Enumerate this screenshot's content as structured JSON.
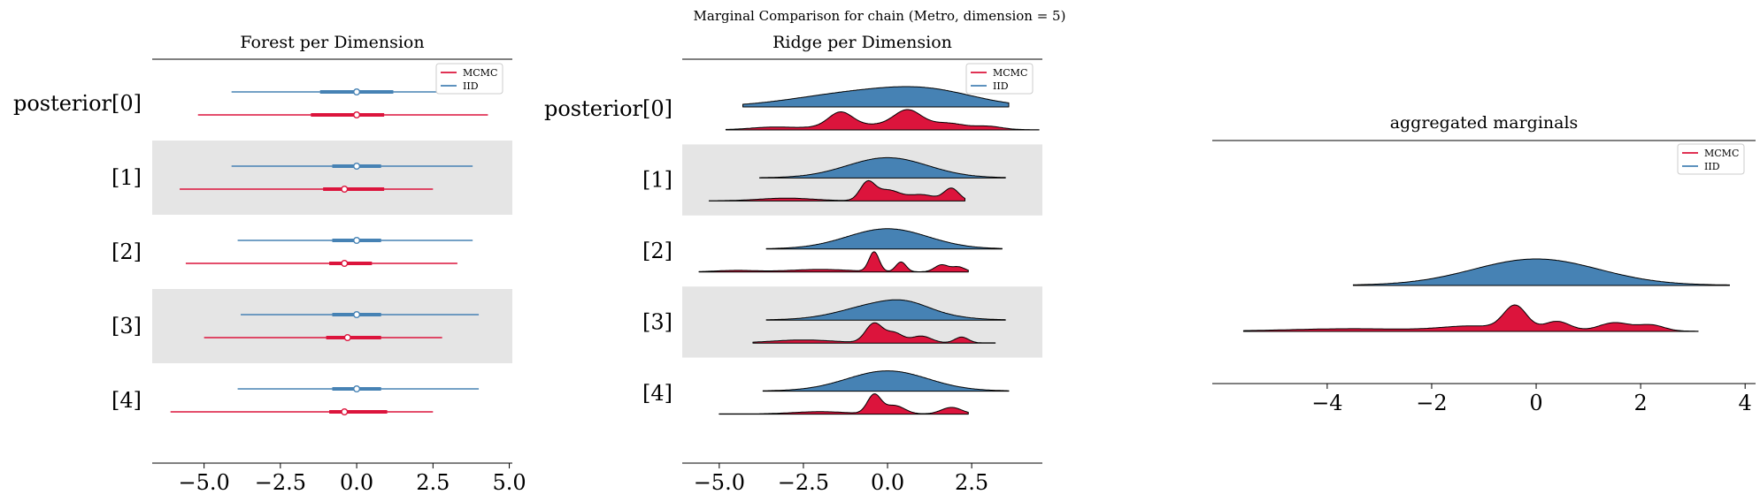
{
  "title": "Marginal Comparison for chain (Metro, dimension = 5)",
  "colors": {
    "mcmc": "#DC143C",
    "iid": "#4682B4",
    "band": "#e5e5e5"
  },
  "legend": {
    "labels": [
      "MCMC",
      "IID"
    ],
    "placement": "upper right"
  },
  "chart_data": [
    {
      "type": "forest",
      "title": "Forest per Dimension",
      "labels": [
        "posterior[0]",
        "[1]",
        "[2]",
        "[3]",
        "[4]"
      ],
      "xticks": [
        "−5.0",
        "−2.5",
        "0.0",
        "2.5",
        "5.0"
      ],
      "xtick_values": [
        -5,
        -2.5,
        0,
        2.5,
        5
      ],
      "xlim": [
        -6.7,
        5.1
      ],
      "series": [
        {
          "name": "IID",
          "rows": [
            {
              "median": 0.0,
              "hdi50": [
                -1.2,
                1.2
              ],
              "hdi94": [
                -4.1,
                4.5
              ]
            },
            {
              "median": 0.0,
              "hdi50": [
                -0.8,
                0.8
              ],
              "hdi94": [
                -4.1,
                3.8
              ]
            },
            {
              "median": 0.0,
              "hdi50": [
                -0.8,
                0.8
              ],
              "hdi94": [
                -3.9,
                3.8
              ]
            },
            {
              "median": 0.0,
              "hdi50": [
                -0.8,
                0.8
              ],
              "hdi94": [
                -3.8,
                4.0
              ]
            },
            {
              "median": 0.0,
              "hdi50": [
                -0.8,
                0.8
              ],
              "hdi94": [
                -3.9,
                4.0
              ]
            }
          ]
        },
        {
          "name": "MCMC",
          "rows": [
            {
              "median": 0.0,
              "hdi50": [
                -1.5,
                0.9
              ],
              "hdi94": [
                -5.2,
                4.3
              ]
            },
            {
              "median": -0.4,
              "hdi50": [
                -1.1,
                0.9
              ],
              "hdi94": [
                -5.8,
                2.5
              ]
            },
            {
              "median": -0.4,
              "hdi50": [
                -0.9,
                0.5
              ],
              "hdi94": [
                -5.6,
                3.3
              ]
            },
            {
              "median": -0.3,
              "hdi50": [
                -1.0,
                0.8
              ],
              "hdi94": [
                -5.0,
                2.8
              ]
            },
            {
              "median": -0.4,
              "hdi50": [
                -0.9,
                1.0
              ],
              "hdi94": [
                -6.1,
                2.5
              ]
            }
          ]
        }
      ]
    },
    {
      "type": "ridgeplot",
      "title": "Ridge per Dimension",
      "labels": [
        "posterior[0]",
        "[1]",
        "[2]",
        "[3]",
        "[4]"
      ],
      "xticks": [
        "−5.0",
        "−2.5",
        "0.0",
        "2.5"
      ],
      "xtick_values": [
        -5,
        -2.5,
        0,
        2.5
      ],
      "xlim": [
        -6.1,
        4.6
      ],
      "series": [
        {
          "name": "IID",
          "rows": [
            {
              "range": [
                -4.3,
                3.6
              ],
              "components": [
                [
                  -1.0,
                  1.8,
                  0.6
                ],
                [
                  1.3,
                  1.4,
                  0.6
                ]
              ]
            },
            {
              "range": [
                -3.8,
                3.5
              ],
              "components": [
                [
                  0.0,
                  1.2,
                  1.0
                ]
              ]
            },
            {
              "range": [
                -3.6,
                3.4
              ],
              "components": [
                [
                  0.0,
                  1.2,
                  1.0
                ]
              ]
            },
            {
              "range": [
                -3.6,
                3.5
              ],
              "components": [
                [
                  0.0,
                  1.2,
                  0.9
                ],
                [
                  0.6,
                  0.6,
                  0.2
                ]
              ]
            },
            {
              "range": [
                -3.7,
                3.6
              ],
              "components": [
                [
                  0.0,
                  1.2,
                  1.0
                ]
              ]
            }
          ]
        },
        {
          "name": "MCMC",
          "rows": [
            {
              "range": [
                -4.8,
                4.5
              ],
              "components": [
                [
                  -1.4,
                  0.35,
                  0.7
                ],
                [
                  0.6,
                  0.4,
                  0.8
                ],
                [
                  -0.4,
                  1.5,
                  0.25
                ],
                [
                  1.8,
                  0.5,
                  0.25
                ],
                [
                  3.0,
                  0.4,
                  0.15
                ],
                [
                  -3.5,
                  0.6,
                  0.1
                ]
              ]
            },
            {
              "range": [
                -5.3,
                2.3
              ],
              "components": [
                [
                  -0.6,
                  0.22,
                  1.0
                ],
                [
                  0.0,
                  0.35,
                  0.6
                ],
                [
                  1.9,
                  0.22,
                  0.7
                ],
                [
                  -3.0,
                  0.8,
                  0.15
                ],
                [
                  1.0,
                  0.4,
                  0.35
                ]
              ]
            },
            {
              "range": [
                -5.6,
                2.4
              ],
              "components": [
                [
                  -0.4,
                  0.15,
                  1.0
                ],
                [
                  0.4,
                  0.15,
                  0.5
                ],
                [
                  1.6,
                  0.2,
                  0.35
                ],
                [
                  2.1,
                  0.2,
                  0.25
                ],
                [
                  -2.0,
                  0.9,
                  0.12
                ],
                [
                  -4.5,
                  0.6,
                  0.07
                ]
              ]
            },
            {
              "range": [
                -4.0,
                3.2
              ],
              "components": [
                [
                  -0.4,
                  0.25,
                  1.0
                ],
                [
                  0.2,
                  0.25,
                  0.5
                ],
                [
                  1.0,
                  0.3,
                  0.35
                ],
                [
                  2.2,
                  0.2,
                  0.3
                ],
                [
                  -2.5,
                  0.9,
                  0.15
                ]
              ]
            },
            {
              "range": [
                -5.0,
                2.4
              ],
              "components": [
                [
                  -0.4,
                  0.2,
                  1.0
                ],
                [
                  0.2,
                  0.3,
                  0.45
                ],
                [
                  1.9,
                  0.3,
                  0.35
                ],
                [
                  -2.0,
                  0.8,
                  0.12
                ]
              ]
            }
          ]
        }
      ]
    },
    {
      "type": "ridgeplot",
      "title": "aggregated marginals",
      "labels": [],
      "xticks": [
        "−4",
        "−2",
        "0",
        "2",
        "4"
      ],
      "xtick_values": [
        -4,
        -2,
        0,
        2,
        4
      ],
      "xlim": [
        -6.2,
        4.2
      ],
      "series": [
        {
          "name": "IID",
          "rows": [
            {
              "range": [
                -3.5,
                3.7
              ],
              "components": [
                [
                  0.0,
                  1.2,
                  1.0
                ]
              ]
            }
          ]
        },
        {
          "name": "MCMC",
          "rows": [
            {
              "range": [
                -5.6,
                3.1
              ],
              "components": [
                [
                  -0.4,
                  0.22,
                  1.0
                ],
                [
                  0.4,
                  0.25,
                  0.4
                ],
                [
                  1.5,
                  0.3,
                  0.35
                ],
                [
                  2.2,
                  0.25,
                  0.25
                ],
                [
                  -1.2,
                  0.6,
                  0.2
                ],
                [
                  -3.5,
                  1.2,
                  0.1
                ]
              ]
            }
          ]
        }
      ]
    }
  ]
}
